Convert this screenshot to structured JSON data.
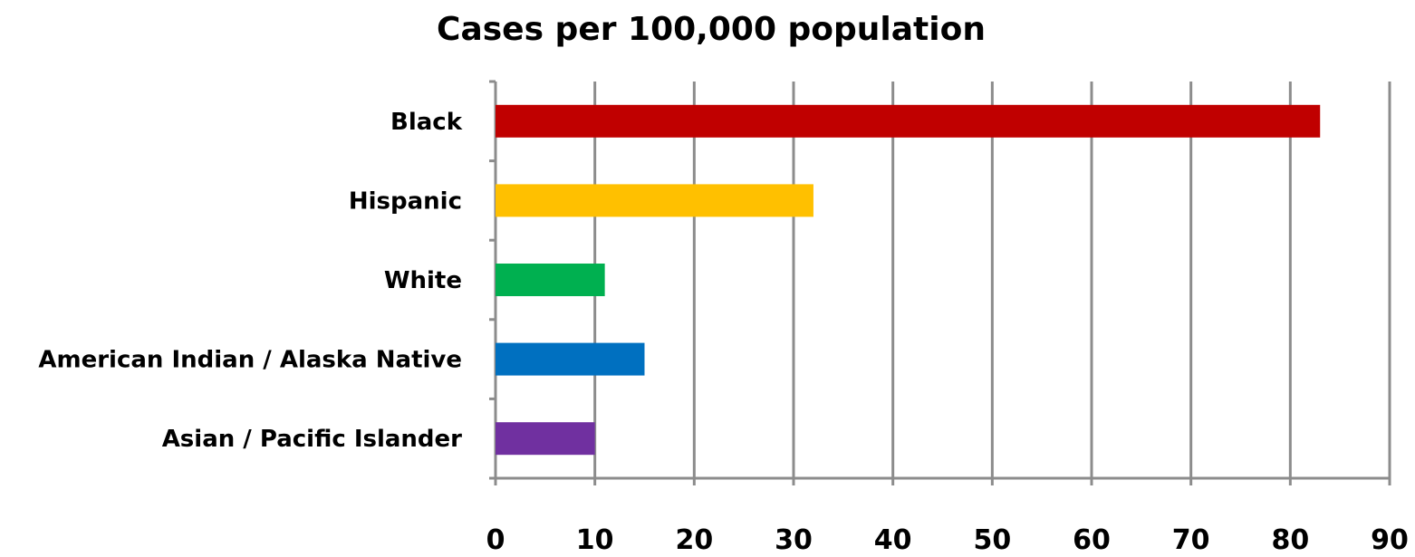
{
  "chart_data": {
    "type": "bar",
    "orientation": "horizontal",
    "title": "Cases per 100,000 population",
    "xlabel": "",
    "ylabel": "",
    "categories": [
      "Black",
      "Hispanic",
      "White",
      "American Indian / Alaska Native",
      "Asian / Pacific Islander"
    ],
    "values": [
      83,
      32,
      11,
      15,
      10
    ],
    "bar_colors": [
      "#C00000",
      "#FFC000",
      "#00B050",
      "#0070C0",
      "#7030A0"
    ],
    "xlim": [
      0,
      90
    ],
    "ticks": [
      0,
      10,
      20,
      30,
      40,
      50,
      60,
      70,
      80,
      90
    ],
    "tick_labels": [
      "0",
      "10",
      "20",
      "30",
      "40",
      "50",
      "60",
      "70",
      "80",
      "90"
    ],
    "grid": true,
    "legend": "none"
  }
}
